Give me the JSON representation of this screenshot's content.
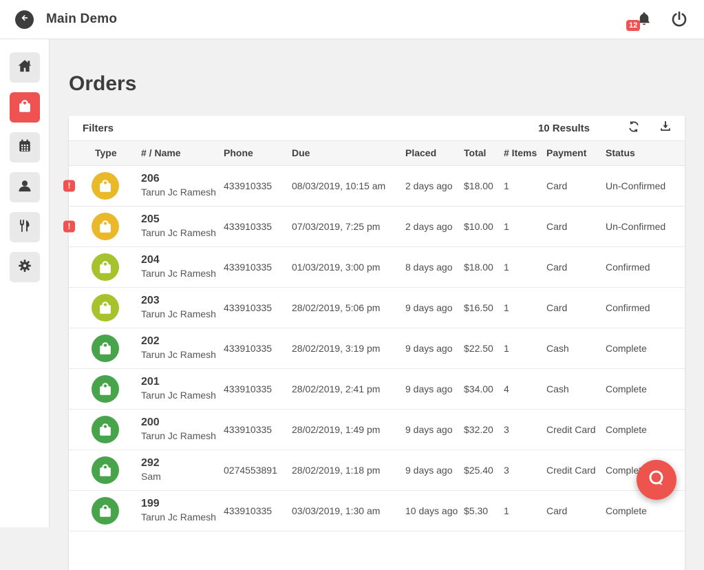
{
  "colors": {
    "accent_red": "#ee5351",
    "status_unconfirmed_icon": "#e9b92a",
    "status_confirmed_icon": "#a6c32d",
    "status_complete_icon": "#47a44b",
    "chat_button": "#ee544e",
    "icon_dark": "#3d3d3d"
  },
  "topbar": {
    "title": "Main Demo",
    "notification_count": "12",
    "icons": [
      "back-arrow-icon",
      "bell-icon",
      "power-icon"
    ]
  },
  "sidebar": {
    "items": [
      {
        "id": "home",
        "icon": "home-icon",
        "active": false
      },
      {
        "id": "orders",
        "icon": "shopping-bag-icon",
        "active": true
      },
      {
        "id": "calendar",
        "icon": "calendar-icon",
        "active": false
      },
      {
        "id": "customers",
        "icon": "person-icon",
        "active": false
      },
      {
        "id": "menu",
        "icon": "utensils-icon",
        "active": false
      },
      {
        "id": "settings",
        "icon": "gear-icon",
        "active": false
      }
    ]
  },
  "page": {
    "title": "Orders"
  },
  "filters": {
    "label": "Filters",
    "results": "10 Results",
    "icons": [
      "refresh-icon",
      "download-icon"
    ]
  },
  "table": {
    "columns": [
      "Type",
      "# / Name",
      "Phone",
      "Due",
      "Placed",
      "Total",
      "# Items",
      "Payment",
      "Status"
    ],
    "rows": [
      {
        "alert": true,
        "type_color": "#e9b92a",
        "number": "206",
        "name": "Tarun Jc Ramesh",
        "phone": "433910335",
        "due": "08/03/2019, 10:15 am",
        "placed": "2 days ago",
        "total": "$18.00",
        "items": "1",
        "payment": "Card",
        "status": "Un-Confirmed"
      },
      {
        "alert": true,
        "type_color": "#e9b92a",
        "number": "205",
        "name": "Tarun Jc Ramesh",
        "phone": "433910335",
        "due": "07/03/2019, 7:25 pm",
        "placed": "2 days ago",
        "total": "$10.00",
        "items": "1",
        "payment": "Card",
        "status": "Un-Confirmed"
      },
      {
        "alert": false,
        "type_color": "#a6c32d",
        "number": "204",
        "name": "Tarun Jc Ramesh",
        "phone": "433910335",
        "due": "01/03/2019, 3:00 pm",
        "placed": "8 days ago",
        "total": "$18.00",
        "items": "1",
        "payment": "Card",
        "status": "Confirmed"
      },
      {
        "alert": false,
        "type_color": "#a6c32d",
        "number": "203",
        "name": "Tarun Jc Ramesh",
        "phone": "433910335",
        "due": "28/02/2019, 5:06 pm",
        "placed": "9 days ago",
        "total": "$16.50",
        "items": "1",
        "payment": "Card",
        "status": "Confirmed"
      },
      {
        "alert": false,
        "type_color": "#47a44b",
        "number": "202",
        "name": "Tarun Jc Ramesh",
        "phone": "433910335",
        "due": "28/02/2019, 3:19 pm",
        "placed": "9 days ago",
        "total": "$22.50",
        "items": "1",
        "payment": "Cash",
        "status": "Complete"
      },
      {
        "alert": false,
        "type_color": "#47a44b",
        "number": "201",
        "name": "Tarun Jc Ramesh",
        "phone": "433910335",
        "due": "28/02/2019, 2:41 pm",
        "placed": "9 days ago",
        "total": "$34.00",
        "items": "4",
        "payment": "Cash",
        "status": "Complete"
      },
      {
        "alert": false,
        "type_color": "#47a44b",
        "number": "200",
        "name": "Tarun Jc Ramesh",
        "phone": "433910335",
        "due": "28/02/2019, 1:49 pm",
        "placed": "9 days ago",
        "total": "$32.20",
        "items": "3",
        "payment": "Credit Card",
        "status": "Complete"
      },
      {
        "alert": false,
        "type_color": "#47a44b",
        "number": "292",
        "name": "Sam",
        "phone": "0274553891",
        "due": "28/02/2019, 1:18 pm",
        "placed": "9 days ago",
        "total": "$25.40",
        "items": "3",
        "payment": "Credit Card",
        "status": "Complete"
      },
      {
        "alert": false,
        "type_color": "#47a44b",
        "number": "199",
        "name": "Tarun Jc Ramesh",
        "phone": "433910335",
        "due": "03/03/2019, 1:30 am",
        "placed": "10 days ago",
        "total": "$5.30",
        "items": "1",
        "payment": "Card",
        "status": "Complete"
      }
    ]
  },
  "chat": {
    "icon": "chat-bubble-icon"
  }
}
